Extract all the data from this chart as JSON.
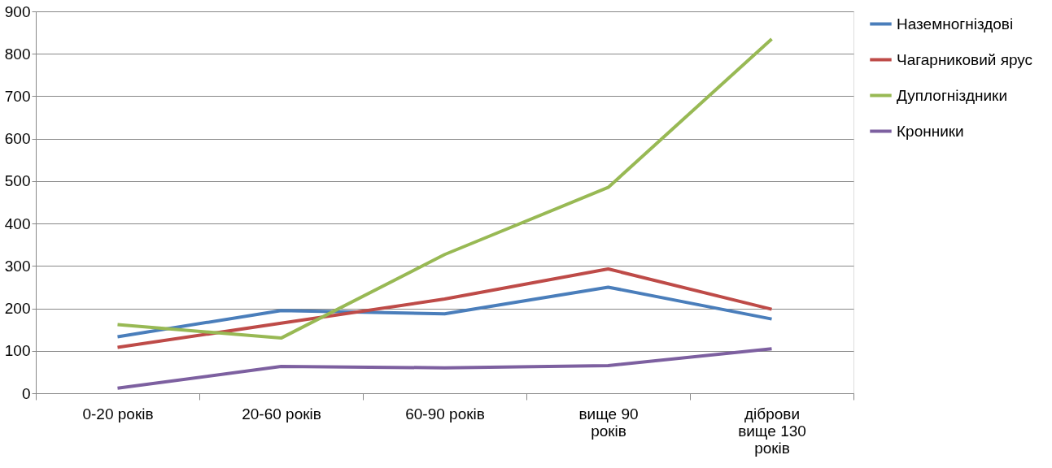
{
  "chart_data": {
    "type": "line",
    "categories": [
      "0-20 років",
      "20-60 років",
      "60-90 років",
      "вище 90 років",
      "діброви вище 130 років"
    ],
    "series": [
      {
        "name": "Наземногніздові",
        "color": "#4a7ebb",
        "values": [
          133,
          195,
          187,
          250,
          175
        ]
      },
      {
        "name": "Чагарниковий ярус",
        "color": "#be4b48",
        "values": [
          108,
          165,
          222,
          293,
          198
        ]
      },
      {
        "name": "Дуплогніздники",
        "color": "#98b954",
        "values": [
          162,
          130,
          327,
          485,
          835
        ]
      },
      {
        "name": "Кронники",
        "color": "#7d60a0",
        "values": [
          12,
          63,
          60,
          65,
          105
        ]
      }
    ],
    "ylim": [
      0,
      900
    ],
    "yticks": [
      0,
      100,
      200,
      300,
      400,
      500,
      600,
      700,
      800,
      900
    ],
    "grid": "y",
    "legend": "right",
    "marker": "none",
    "line_style": "solid"
  }
}
